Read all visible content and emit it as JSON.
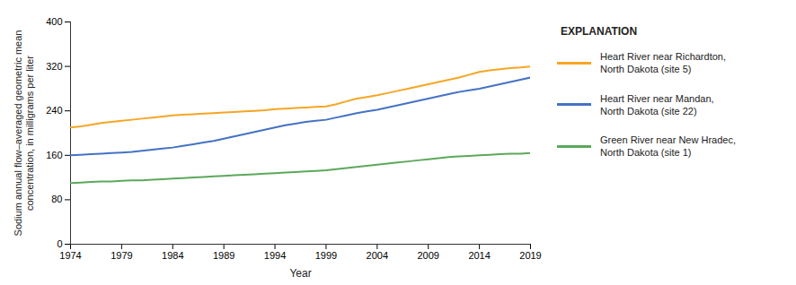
{
  "chart_data": {
    "type": "line",
    "xlabel": "Year",
    "ylabel": "Sodium annual flow–averaged geometric mean\nconcentration, in milligrams per liter",
    "legend_title": "EXPLANATION",
    "legend": "right",
    "grid": false,
    "xlim": [
      1974,
      2019
    ],
    "ylim": [
      0,
      400
    ],
    "xticks": [
      1974,
      1979,
      1984,
      1989,
      1994,
      1999,
      2004,
      2009,
      2014,
      2019
    ],
    "yticks": [
      0,
      80,
      160,
      240,
      320,
      400
    ],
    "x": [
      1974,
      1975,
      1976,
      1977,
      1978,
      1979,
      1980,
      1981,
      1982,
      1983,
      1984,
      1985,
      1986,
      1987,
      1988,
      1989,
      1990,
      1991,
      1992,
      1993,
      1994,
      1995,
      1996,
      1997,
      1998,
      1999,
      2000,
      2001,
      2002,
      2003,
      2004,
      2005,
      2006,
      2007,
      2008,
      2009,
      2010,
      2011,
      2012,
      2013,
      2014,
      2015,
      2016,
      2017,
      2018,
      2019
    ],
    "series": [
      {
        "name": "Heart River near Richardton,\nNorth Dakota (site 5)",
        "color": "#F5A623",
        "values": [
          210,
          212,
          215,
          218,
          220,
          222,
          224,
          226,
          228,
          230,
          232,
          233,
          234,
          235,
          236,
          237,
          238,
          239,
          240,
          241,
          243,
          244,
          245,
          246,
          247,
          248,
          252,
          257,
          262,
          265,
          268,
          272,
          276,
          280,
          284,
          288,
          292,
          296,
          300,
          305,
          310,
          313,
          315,
          317,
          318,
          320
        ]
      },
      {
        "name": "Heart River near Mandan,\nNorth Dakota (site 22)",
        "color": "#4472C4",
        "values": [
          160,
          161,
          162,
          163,
          164,
          165,
          166,
          168,
          170,
          172,
          174,
          177,
          180,
          183,
          186,
          190,
          194,
          198,
          202,
          206,
          210,
          214,
          217,
          220,
          222,
          224,
          228,
          232,
          236,
          239,
          242,
          246,
          250,
          254,
          258,
          262,
          266,
          270,
          274,
          277,
          280,
          284,
          288,
          292,
          296,
          300
        ]
      },
      {
        "name": "Green River near New Hradec,\nNorth Dakota (site 1)",
        "color": "#5BA85B",
        "values": [
          110,
          111,
          112,
          113,
          113,
          114,
          115,
          115,
          116,
          117,
          118,
          119,
          120,
          121,
          122,
          123,
          124,
          125,
          126,
          127,
          128,
          129,
          130,
          131,
          132,
          133,
          135,
          137,
          139,
          141,
          143,
          145,
          147,
          149,
          151,
          153,
          155,
          157,
          158,
          159,
          160,
          161,
          162,
          163,
          163,
          164
        ]
      }
    ]
  }
}
